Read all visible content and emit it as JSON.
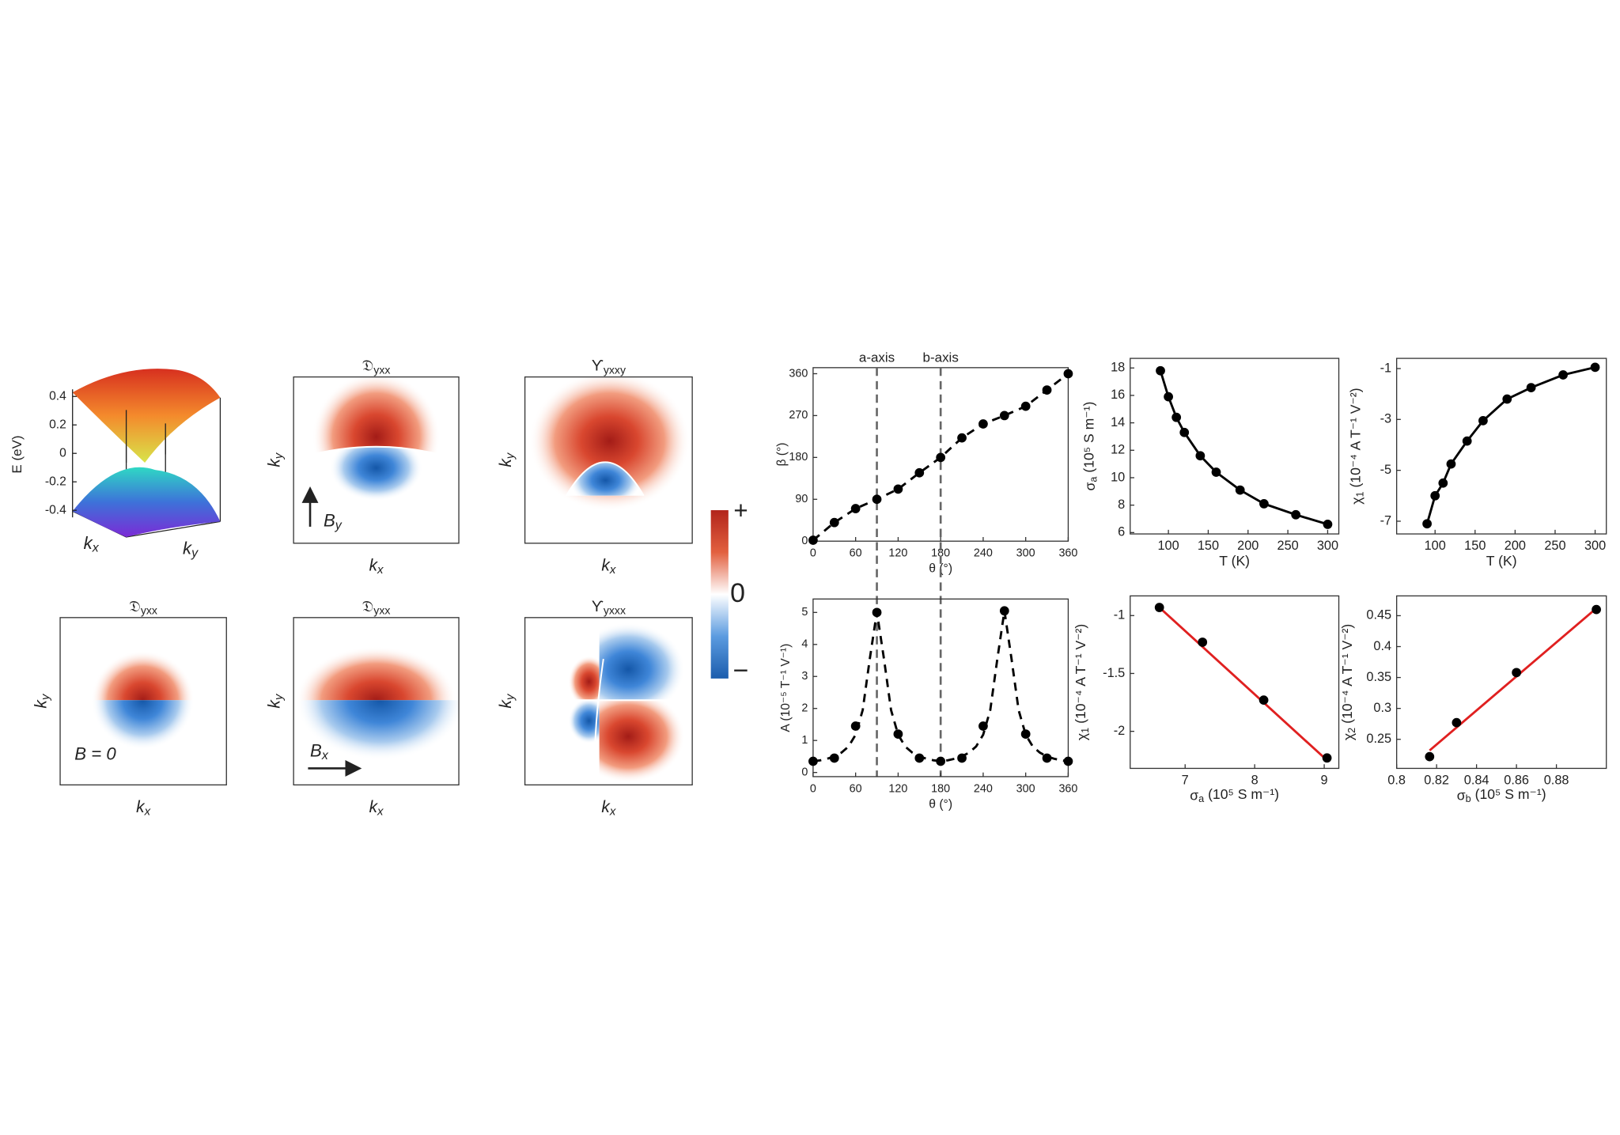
{
  "chart_data": [
    {
      "type": "surface",
      "ylabel": "E (eV)",
      "xlabel": [
        "k",
        "x"
      ],
      "zlabel": [
        "k",
        "y"
      ],
      "ylim": [
        -0.45,
        0.45
      ],
      "yticks": [
        0.4,
        0.2,
        0,
        -0.2,
        -0.4
      ]
    },
    {
      "type": "scatter",
      "xlabel": "θ (°)",
      "ylabel": "β (°)",
      "xlim": [
        0,
        360
      ],
      "ylim": [
        0,
        373
      ],
      "xticks": [
        0,
        60,
        120,
        180,
        240,
        300,
        360
      ],
      "yticks": [
        0,
        90,
        180,
        270,
        360
      ],
      "vlines": [
        90,
        180
      ],
      "vline_labels": [
        "a-axis",
        "b-axis"
      ],
      "series": [
        {
          "color": "#000000",
          "line": "dashed",
          "marker": true,
          "x": [
            0,
            30,
            60,
            90,
            120,
            150,
            180,
            210,
            240,
            270,
            300,
            330,
            360
          ],
          "values": [
            2,
            40,
            70,
            90,
            112,
            147,
            180,
            222,
            252,
            270,
            290,
            325,
            360
          ]
        }
      ]
    },
    {
      "type": "scatter",
      "xlabel": "θ (°)",
      "ylabel": "A (10⁻⁵ T⁻¹ V⁻¹)",
      "xlim": [
        0,
        360
      ],
      "ylim": [
        -0.13,
        5.42
      ],
      "xticks": [
        0,
        60,
        120,
        180,
        240,
        300,
        360
      ],
      "yticks": [
        0,
        1,
        2,
        3,
        4,
        5
      ],
      "series": [
        {
          "color": "#000000",
          "line": "none",
          "marker": true,
          "x": [
            0,
            30,
            60,
            90,
            120,
            150,
            180,
            210,
            240,
            270,
            300,
            330,
            360
          ],
          "values": [
            0.35,
            0.45,
            1.45,
            5.0,
            1.2,
            0.45,
            0.35,
            0.45,
            1.45,
            5.05,
            1.2,
            0.45,
            0.35
          ]
        },
        {
          "color": "#000000",
          "line": "dashed",
          "marker": false,
          "x": [
            0,
            10,
            20,
            30,
            40,
            50,
            60,
            70,
            80,
            90,
            100,
            110,
            120,
            130,
            140,
            150,
            160,
            170,
            180,
            190,
            200,
            210,
            220,
            230,
            240,
            250,
            260,
            270,
            280,
            290,
            300,
            310,
            320,
            330,
            340,
            350,
            360
          ],
          "values": [
            0.35,
            0.38,
            0.43,
            0.5,
            0.62,
            0.81,
            1.18,
            1.95,
            3.55,
            5.02,
            3.55,
            1.95,
            1.18,
            0.81,
            0.62,
            0.5,
            0.43,
            0.38,
            0.36,
            0.38,
            0.43,
            0.5,
            0.62,
            0.81,
            1.18,
            1.95,
            3.55,
            5.05,
            3.55,
            1.95,
            1.18,
            0.81,
            0.62,
            0.5,
            0.43,
            0.38,
            0.35
          ]
        }
      ]
    },
    {
      "type": "scatter",
      "xlabel": "T (K)",
      "ylabel": [
        "σ",
        "a",
        " (10⁵ S m⁻¹)"
      ],
      "xlim": [
        52,
        314
      ],
      "ylim": [
        5.9,
        18.7
      ],
      "xticks": [
        100,
        150,
        200,
        250,
        300
      ],
      "yticks": [
        6,
        8,
        10,
        12,
        14,
        16,
        18
      ],
      "series": [
        {
          "color": "#000000",
          "line": "solid",
          "marker": true,
          "x": [
            90,
            100,
            110,
            120,
            140,
            160,
            190,
            220,
            260,
            300
          ],
          "values": [
            17.8,
            15.9,
            14.4,
            13.3,
            11.6,
            10.4,
            9.1,
            8.1,
            7.3,
            6.6
          ]
        }
      ]
    },
    {
      "type": "scatter",
      "xlabel": "T (K)",
      "ylabel": [
        "χ",
        "1",
        " (10⁻⁴ A T⁻¹ V⁻²)"
      ],
      "xlim": [
        52,
        314
      ],
      "ylim": [
        -7.5,
        -0.6
      ],
      "xticks": [
        100,
        150,
        200,
        250,
        300
      ],
      "yticks": [
        -7,
        -5,
        -3,
        -1
      ],
      "series": [
        {
          "color": "#000000",
          "line": "solid",
          "marker": true,
          "x": [
            90,
            100,
            110,
            120,
            140,
            160,
            190,
            220,
            260,
            300
          ],
          "values": [
            -7.1,
            -6.0,
            -5.5,
            -4.75,
            -3.85,
            -3.05,
            -2.2,
            -1.75,
            -1.25,
            -0.95
          ]
        }
      ]
    },
    {
      "type": "scatter",
      "xlabel": [
        "σ",
        "a",
        " (10⁵ S m⁻¹)"
      ],
      "ylabel": [
        "χ",
        "1",
        " (10⁻⁴ A T⁻¹ V⁻²)"
      ],
      "xlim": [
        6.21,
        9.21
      ],
      "ylim": [
        -2.32,
        -0.83
      ],
      "xticks": [
        7,
        8,
        9
      ],
      "yticks": [
        -2,
        -1.5,
        -1
      ],
      "series": [
        {
          "color": "#e02020",
          "line": "solid",
          "marker": false,
          "x": [
            6.63,
            9.04
          ],
          "values": [
            -0.93,
            -2.25
          ]
        },
        {
          "color": "#000000",
          "line": "none",
          "marker": true,
          "x": [
            6.63,
            7.25,
            8.13,
            9.04
          ],
          "values": [
            -0.93,
            -1.23,
            -1.73,
            -2.23
          ]
        }
      ]
    },
    {
      "type": "scatter",
      "xlabel": [
        "σ",
        "b",
        " (10⁵ S m⁻¹)"
      ],
      "ylabel": [
        "χ",
        "2",
        " (10⁻⁴ A T⁻¹ V⁻²)"
      ],
      "xlim": [
        0.8,
        0.905
      ],
      "ylim": [
        0.203,
        0.482
      ],
      "xticks": [
        0.8,
        0.82,
        0.84,
        0.86,
        0.88
      ],
      "yticks": [
        0.25,
        0.3,
        0.35,
        0.4,
        0.45
      ],
      "series": [
        {
          "color": "#e02020",
          "line": "solid",
          "marker": false,
          "x": [
            0.8165,
            0.9
          ],
          "values": [
            0.232,
            0.462
          ]
        },
        {
          "color": "#000000",
          "line": "none",
          "marker": true,
          "x": [
            0.8165,
            0.83,
            0.86,
            0.9
          ],
          "values": [
            0.222,
            0.277,
            0.358,
            0.46
          ]
        }
      ]
    }
  ],
  "heatmap_panels": [
    {
      "title": [
        "𝔇",
        "yxx"
      ],
      "xlabel": [
        "k",
        "x"
      ],
      "ylabel": [
        "k",
        "y"
      ],
      "annotation": [
        "B",
        "y"
      ]
    },
    {
      "title": [
        "ϒ",
        "yxxy"
      ],
      "xlabel": [
        "k",
        "x"
      ],
      "ylabel": [
        "k",
        "y"
      ]
    },
    {
      "title": [
        "𝔇",
        "yxx"
      ],
      "xlabel": [
        "k",
        "x"
      ],
      "ylabel": [
        "k",
        "y"
      ],
      "annotation": "B = 0"
    },
    {
      "title": [
        "𝔇",
        "yxx"
      ],
      "xlabel": [
        "k",
        "x"
      ],
      "ylabel": [
        "k",
        "y"
      ],
      "annotation": [
        "B",
        "x"
      ]
    },
    {
      "title": [
        "ϒ",
        "yxxx"
      ],
      "xlabel": [
        "k",
        "x"
      ],
      "ylabel": [
        "k",
        "y"
      ]
    }
  ],
  "colorbar": {
    "labels": [
      "+",
      "0",
      "−"
    ]
  }
}
